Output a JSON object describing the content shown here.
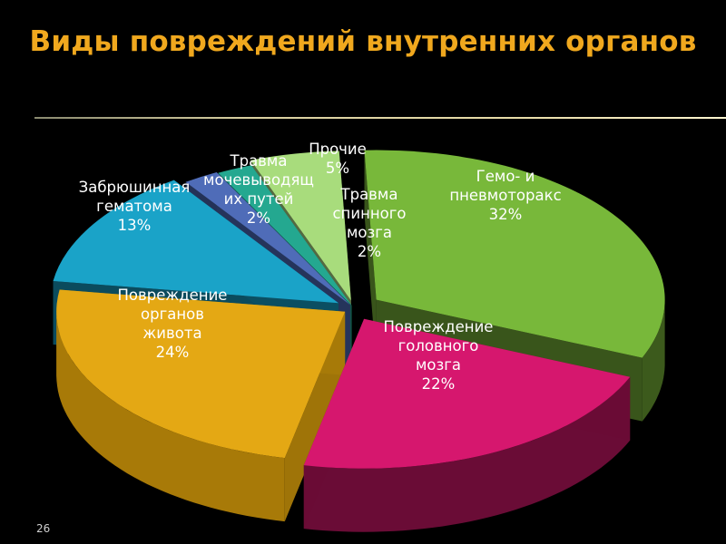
{
  "slide": {
    "title": "Виды повреждений внутренних органов",
    "page_number": "26"
  },
  "chart_data": {
    "type": "pie",
    "title": "",
    "three_d": true,
    "exploded": true,
    "legend": "none",
    "slices": [
      {
        "label": [
          "Гемо- и",
          "пневмоторакс",
          "32%"
        ],
        "value": 32,
        "color": "#78B83A",
        "side": "#3C5A1C"
      },
      {
        "label": [
          "Повреждение",
          "головного",
          "мозга",
          "22%"
        ],
        "value": 22,
        "color": "#D6176E",
        "side": "#6A0C36"
      },
      {
        "label": [
          "Повреждение",
          "органов",
          "живота",
          "24%"
        ],
        "value": 24,
        "color": "#E4A814",
        "side": "#A87A08"
      },
      {
        "label": [
          "Забрюшинная",
          "гематома",
          "13%"
        ],
        "value": 13,
        "color": "#1AA3C8",
        "side": "#0C4F62"
      },
      {
        "label": [
          "Травма",
          "мочевыводящ",
          "их путей",
          "2%"
        ],
        "value": 2,
        "color": "#4F6CB8",
        "side": "#26355C"
      },
      {
        "label": [
          "Травма",
          "спинного",
          "мозга",
          "2%"
        ],
        "value": 2,
        "color": "#24A890",
        "side": "#115446"
      },
      {
        "label": [
          "Прочие",
          "5%"
        ],
        "value": 5,
        "color": "#A8DC7C",
        "side": "#587044"
      }
    ]
  }
}
